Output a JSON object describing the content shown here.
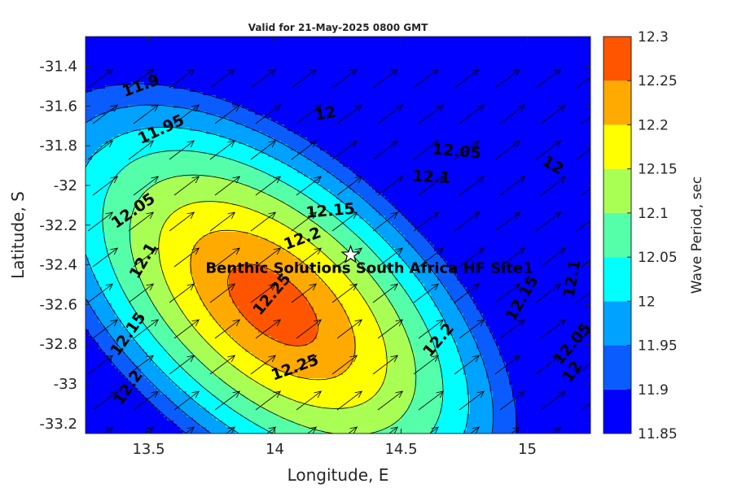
{
  "chart_data": {
    "type": "contourf",
    "title": "Valid for 21-May-2025 0800 GMT",
    "xlabel": "Longitude, E",
    "ylabel": "Latitude, S",
    "xlim": [
      13.25,
      15.25
    ],
    "ylim": [
      -33.25,
      -31.25
    ],
    "xticks": [
      13.5,
      14,
      14.5,
      15
    ],
    "xtick_labels": [
      "13.5",
      "14",
      "14.5",
      "15"
    ],
    "yticks": [
      -31.4,
      -31.6,
      -31.8,
      -32,
      -32.2,
      -32.4,
      -32.6,
      -32.8,
      -33,
      -33.2
    ],
    "ytick_labels": [
      "-31.4",
      "-31.6",
      "-31.8",
      "-32",
      "-32.2",
      "-32.4",
      "-32.6",
      "-32.8",
      "-33",
      "-33.2"
    ],
    "colorbar": {
      "label": "Wave Period, sec",
      "levels": [
        11.85,
        11.9,
        11.95,
        12,
        12.05,
        12.1,
        12.15,
        12.2,
        12.25,
        12.3
      ],
      "tick_labels": [
        "11.85",
        "11.9",
        "11.95",
        "12",
        "12.05",
        "12.1",
        "12.15",
        "12.2",
        "12.25",
        "12.3"
      ],
      "colors": [
        "#0000ff",
        "#0a5cff",
        "#00a2ff",
        "#00ffff",
        "#55ffaa",
        "#aaff55",
        "#ffff00",
        "#ffaa00",
        "#ff5500"
      ]
    },
    "peak": {
      "lon": 14.15,
      "lat": -32.65,
      "value": 12.28
    },
    "contour_labels": [
      {
        "text": "11.9",
        "lon": 13.47,
        "lat": -31.5,
        "angle": -20
      },
      {
        "text": "11.95",
        "lon": 13.55,
        "lat": -31.72,
        "angle": -25
      },
      {
        "text": "12",
        "lon": 14.2,
        "lat": -31.64,
        "angle": -10
      },
      {
        "text": "12.05",
        "lon": 14.72,
        "lat": -31.83,
        "angle": 5
      },
      {
        "text": "12.1",
        "lon": 14.62,
        "lat": -31.96,
        "angle": 3
      },
      {
        "text": "12",
        "lon": 15.1,
        "lat": -31.9,
        "angle": 30
      },
      {
        "text": "12.05",
        "lon": 13.44,
        "lat": -32.13,
        "angle": -35
      },
      {
        "text": "12.15",
        "lon": 14.22,
        "lat": -32.13,
        "angle": -5
      },
      {
        "text": "12.2",
        "lon": 14.11,
        "lat": -32.27,
        "angle": -20
      },
      {
        "text": "12.1",
        "lon": 13.48,
        "lat": -32.38,
        "angle": -60
      },
      {
        "text": "12.25",
        "lon": 13.99,
        "lat": -32.55,
        "angle": -50
      },
      {
        "text": "12.15",
        "lon": 13.42,
        "lat": -32.75,
        "angle": -55
      },
      {
        "text": "12.25",
        "lon": 14.08,
        "lat": -32.92,
        "angle": -20
      },
      {
        "text": "12.2",
        "lon": 14.65,
        "lat": -32.78,
        "angle": -50
      },
      {
        "text": "12.15",
        "lon": 14.98,
        "lat": -32.57,
        "angle": -60
      },
      {
        "text": "12.1",
        "lon": 15.24,
        "lat": -32.47,
        "angle": -80
      },
      {
        "text": "12.05",
        "lon": 15.18,
        "lat": -32.8,
        "angle": -50
      },
      {
        "text": "12",
        "lon": 15.27,
        "lat": -32.94,
        "angle": -55
      },
      {
        "text": "12.2",
        "lon": 13.42,
        "lat": -33.02,
        "angle": -55
      }
    ],
    "wind_arrows": {
      "direction": "north-east",
      "grid": "regular"
    },
    "site": {
      "name": "Benthic Solutions South Africa HF Site1",
      "lon": 14.3,
      "lat": -32.35,
      "marker": "star"
    }
  }
}
